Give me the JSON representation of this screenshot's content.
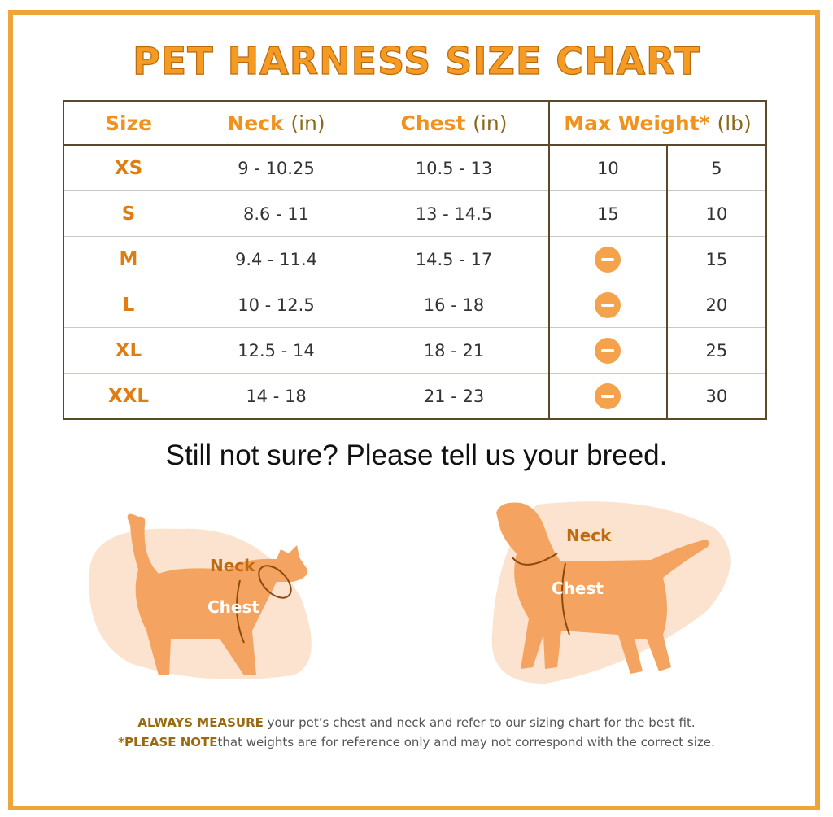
{
  "title": "PET HARNESS SIZE CHART",
  "table": {
    "headers": {
      "size": "Size",
      "neck": "Neck",
      "neck_unit": "(in)",
      "chest": "Chest",
      "chest_unit": "(in)",
      "weight": "Max Weight*",
      "weight_unit": "(lb)"
    },
    "rows": [
      {
        "size": "XS",
        "neck": "9 - 10.25",
        "chest": "10.5 - 13",
        "w1": "10",
        "w2": "5"
      },
      {
        "size": "S",
        "neck": "8.6 - 11",
        "chest": "13 - 14.5",
        "w1": "15",
        "w2": "10"
      },
      {
        "size": "M",
        "neck": "9.4 - 11.4",
        "chest": "14.5 - 17",
        "w1": null,
        "w2": "15"
      },
      {
        "size": "L",
        "neck": "10 - 12.5",
        "chest": "16 - 18",
        "w1": null,
        "w2": "20"
      },
      {
        "size": "XL",
        "neck": "12.5 - 14",
        "chest": "18 - 21",
        "w1": null,
        "w2": "25"
      },
      {
        "size": "XXL",
        "neck": "14 - 18",
        "chest": "21 - 23",
        "w1": null,
        "w2": "30"
      }
    ],
    "na_icon": "minus-circle-icon"
  },
  "subtitle": "Still not sure? Please tell us your breed.",
  "cat": {
    "neck": "Neck",
    "chest": "Chest"
  },
  "dog": {
    "neck": "Neck",
    "chest": "Chest"
  },
  "footer": {
    "line1_bold": "ALWAYS MEASURE",
    "line1": " your pet’s chest and neck and refer to our sizing chart for the best fit.",
    "line2_bold": "*PLEASE NOTE",
    "line2": "that weights are for reference only and may not correspond with the correct size."
  },
  "colors": {
    "accent": "#f59a22",
    "border": "#f0a53a",
    "silhouette": "#f4a460",
    "blob": "#fbe3cf"
  }
}
